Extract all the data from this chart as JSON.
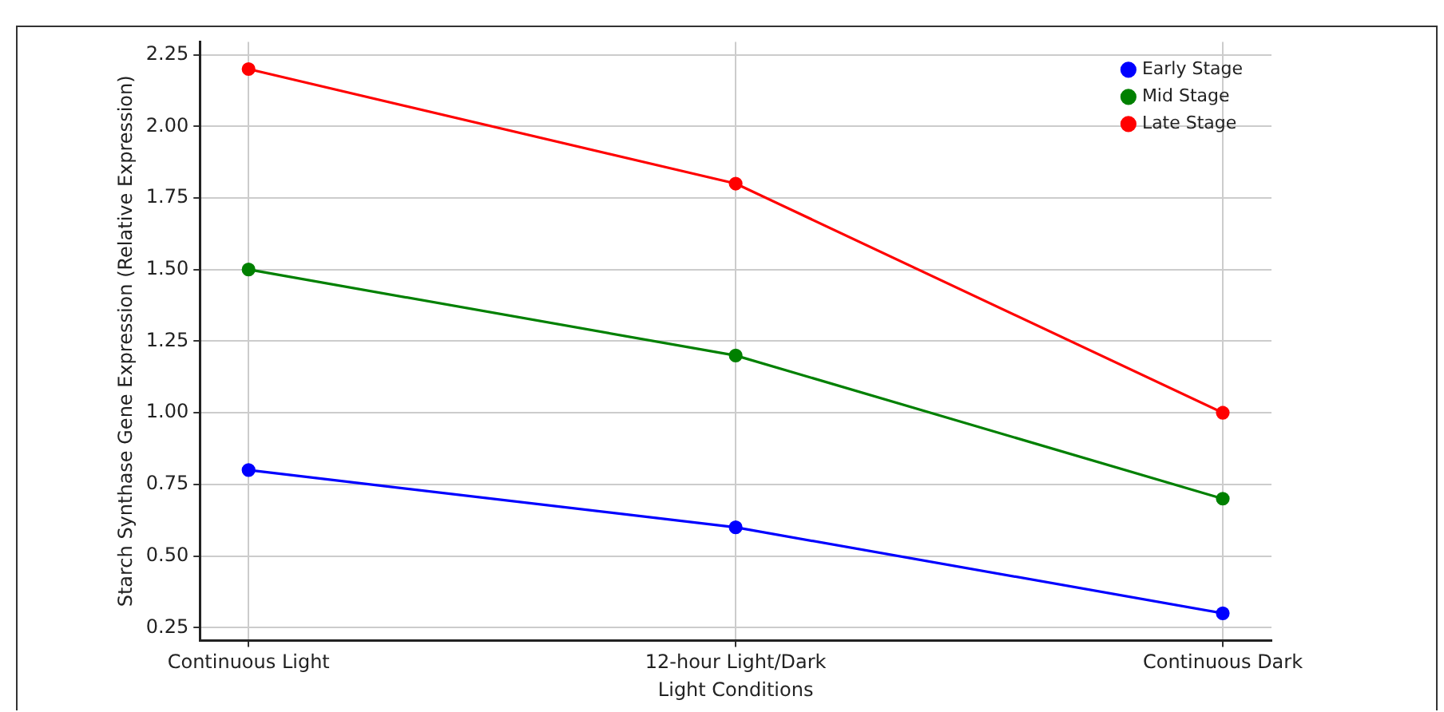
{
  "chart_data": {
    "type": "line",
    "xlabel": "Light Conditions",
    "ylabel": "Starch Synthase Gene Expression (Relative Expression)",
    "categories": [
      "Continuous Light",
      "12-hour Light/Dark",
      "Continuous Dark"
    ],
    "series": [
      {
        "name": "Early Stage",
        "color": "#0000ff",
        "values": [
          0.8,
          0.6,
          0.3
        ]
      },
      {
        "name": "Mid Stage",
        "color": "#008000",
        "values": [
          1.5,
          1.2,
          0.7
        ]
      },
      {
        "name": "Late Stage",
        "color": "#ff0000",
        "values": [
          2.2,
          1.8,
          1.0
        ]
      }
    ],
    "ylim": [
      0.205,
      2.295
    ],
    "yticks": [
      0.25,
      {
        "value": 0.5,
        "label": "0.50"
      },
      0.75,
      {
        "value": 1,
        "label": "1.00"
      },
      1.25,
      {
        "value": 1.5,
        "label": "1.50"
      },
      1.75,
      {
        "value": 2,
        "label": "2.00"
      },
      2.25
    ],
    "grid": true,
    "legend": "top right",
    "marker": "circle",
    "line_style": "solid"
  }
}
